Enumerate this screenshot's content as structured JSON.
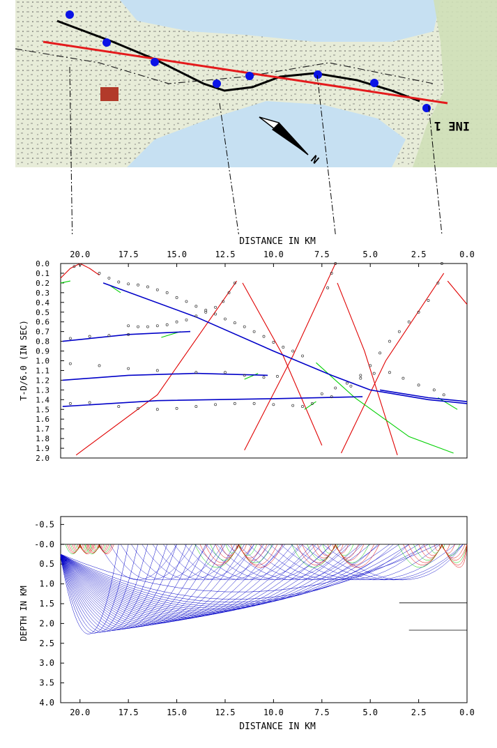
{
  "map": {
    "labels": [
      "INE 1",
      "N"
    ],
    "profile_line_color": "#e41a1c",
    "shotpoint_color": "#0a12e6",
    "shotpoint_count": 9
  },
  "colors": {
    "red": "#e00000",
    "green": "#00d000",
    "blue": "#0000c8"
  },
  "chart_data": [
    {
      "type": "line",
      "title": "",
      "xlabel": "DISTANCE IN KM",
      "ylabel": "T-D/6.0 (IN SEC)",
      "xlim": [
        21.0,
        0.0
      ],
      "ylim": [
        2.0,
        0.0
      ],
      "x_ticks": [
        "20.0",
        "17.5",
        "15.0",
        "12.5",
        "10.0",
        "7.5",
        "5.0",
        "2.5",
        "0.0"
      ],
      "y_ticks": [
        "0.0",
        "0.1",
        "0.2",
        "0.3",
        "0.4",
        "0.5",
        "0.6",
        "0.7",
        "0.8",
        "0.9",
        "1.0",
        "1.1",
        "1.2",
        "1.3",
        "1.4",
        "1.5",
        "1.6",
        "1.7",
        "1.8",
        "1.9",
        "2.0"
      ],
      "series": [
        {
          "color": "red",
          "values": [
            [
              21.0,
              0.15
            ],
            [
              20.5,
              0.05
            ],
            [
              20.0,
              0.0
            ],
            [
              19.5,
              0.05
            ],
            [
              19.0,
              0.12
            ]
          ]
        },
        {
          "color": "red",
          "values": [
            [
              20.2,
              1.97
            ],
            [
              16.0,
              1.35
            ],
            [
              11.9,
              0.18
            ]
          ]
        },
        {
          "color": "red",
          "values": [
            [
              11.6,
              0.2
            ],
            [
              9.5,
              0.95
            ],
            [
              7.5,
              1.87
            ]
          ]
        },
        {
          "color": "red",
          "values": [
            [
              11.5,
              1.92
            ],
            [
              9.0,
              0.95
            ],
            [
              6.8,
              0.0
            ]
          ]
        },
        {
          "color": "red",
          "values": [
            [
              6.7,
              0.2
            ],
            [
              5.3,
              0.9
            ],
            [
              3.6,
              1.97
            ]
          ]
        },
        {
          "color": "red",
          "values": [
            [
              6.5,
              1.95
            ],
            [
              4.2,
              1.0
            ],
            [
              1.2,
              0.1
            ]
          ]
        },
        {
          "color": "red",
          "values": [
            [
              1.0,
              0.18
            ],
            [
              0.0,
              0.42
            ]
          ]
        },
        {
          "color": "green",
          "values": [
            [
              21.0,
              0.2
            ],
            [
              20.5,
              0.18
            ]
          ]
        },
        {
          "color": "green",
          "values": [
            [
              18.5,
              0.22
            ],
            [
              17.9,
              0.3
            ]
          ]
        },
        {
          "color": "green",
          "values": [
            [
              15.8,
              0.76
            ],
            [
              14.8,
              0.7
            ]
          ]
        },
        {
          "color": "green",
          "values": [
            [
              11.5,
              1.19
            ],
            [
              10.8,
              1.13
            ]
          ]
        },
        {
          "color": "green",
          "values": [
            [
              8.4,
              1.5
            ],
            [
              7.8,
              1.42
            ]
          ]
        },
        {
          "color": "green",
          "values": [
            [
              7.8,
              1.02
            ],
            [
              5.8,
              1.38
            ],
            [
              3.0,
              1.78
            ],
            [
              0.7,
              1.95
            ]
          ]
        },
        {
          "color": "green",
          "values": [
            [
              1.5,
              1.38
            ],
            [
              0.5,
              1.5
            ]
          ]
        },
        {
          "color": "blue",
          "values": [
            [
              18.8,
              0.2
            ],
            [
              14.0,
              0.55
            ],
            [
              10.0,
              0.9
            ],
            [
              7.0,
              1.15
            ],
            [
              5.0,
              1.3
            ],
            [
              2.0,
              1.4
            ],
            [
              0.0,
              1.44
            ]
          ]
        },
        {
          "color": "blue",
          "values": [
            [
              20.9,
              0.8
            ],
            [
              17.5,
              0.73
            ],
            [
              14.3,
              0.7
            ]
          ]
        },
        {
          "color": "blue",
          "values": [
            [
              20.9,
              1.2
            ],
            [
              17.5,
              1.15
            ],
            [
              14.0,
              1.13
            ],
            [
              10.3,
              1.15
            ]
          ]
        },
        {
          "color": "blue",
          "values": [
            [
              20.9,
              1.47
            ],
            [
              16.0,
              1.41
            ],
            [
              10.0,
              1.39
            ],
            [
              5.4,
              1.37
            ]
          ]
        },
        {
          "color": "blue",
          "values": [
            [
              4.5,
              1.3
            ],
            [
              2.0,
              1.38
            ],
            [
              0.0,
              1.42
            ]
          ]
        }
      ],
      "observed_points": [
        [
          20.3,
          0.03
        ],
        [
          20.0,
          0.01
        ],
        [
          19.0,
          0.1
        ],
        [
          18.5,
          0.15
        ],
        [
          18.0,
          0.19
        ],
        [
          17.5,
          0.21
        ],
        [
          17.0,
          0.22
        ],
        [
          16.5,
          0.24
        ],
        [
          16.0,
          0.27
        ],
        [
          15.5,
          0.3
        ],
        [
          15.0,
          0.35
        ],
        [
          14.5,
          0.39
        ],
        [
          14.0,
          0.44
        ],
        [
          13.5,
          0.48
        ],
        [
          13.0,
          0.52
        ],
        [
          12.5,
          0.57
        ],
        [
          12.0,
          0.61
        ],
        [
          11.5,
          0.65
        ],
        [
          11.0,
          0.7
        ],
        [
          10.5,
          0.75
        ],
        [
          10.0,
          0.81
        ],
        [
          9.5,
          0.86
        ],
        [
          9.0,
          0.9
        ],
        [
          8.5,
          0.95
        ],
        [
          17.5,
          0.64
        ],
        [
          17.0,
          0.65
        ],
        [
          16.5,
          0.65
        ],
        [
          16.0,
          0.64
        ],
        [
          15.5,
          0.63
        ],
        [
          15.0,
          0.6
        ],
        [
          14.5,
          0.58
        ],
        [
          14.0,
          0.54
        ],
        [
          13.5,
          0.5
        ],
        [
          13.0,
          0.45
        ],
        [
          12.6,
          0.39
        ],
        [
          12.3,
          0.3
        ],
        [
          12.0,
          0.2
        ],
        [
          20.5,
          0.77
        ],
        [
          19.5,
          0.75
        ],
        [
          18.5,
          0.74
        ],
        [
          17.5,
          0.73
        ],
        [
          20.5,
          1.03
        ],
        [
          19.0,
          1.05
        ],
        [
          17.5,
          1.08
        ],
        [
          16.0,
          1.1
        ],
        [
          14.0,
          1.12
        ],
        [
          12.5,
          1.12
        ],
        [
          11.5,
          1.15
        ],
        [
          10.5,
          1.17
        ],
        [
          9.8,
          1.16
        ],
        [
          20.5,
          1.44
        ],
        [
          19.5,
          1.43
        ],
        [
          18.0,
          1.47
        ],
        [
          17.0,
          1.49
        ],
        [
          16.0,
          1.5
        ],
        [
          15.0,
          1.49
        ],
        [
          14.0,
          1.47
        ],
        [
          13.0,
          1.45
        ],
        [
          12.0,
          1.44
        ],
        [
          11.0,
          1.44
        ],
        [
          10.0,
          1.45
        ],
        [
          9.0,
          1.46
        ],
        [
          8.5,
          1.47
        ],
        [
          8.0,
          1.44
        ],
        [
          7.0,
          1.37
        ],
        [
          6.0,
          1.26
        ],
        [
          5.5,
          1.15
        ],
        [
          5.0,
          1.05
        ],
        [
          4.5,
          0.92
        ],
        [
          4.0,
          0.8
        ],
        [
          3.5,
          0.7
        ],
        [
          3.0,
          0.6
        ],
        [
          2.5,
          0.5
        ],
        [
          2.0,
          0.38
        ],
        [
          1.5,
          0.2
        ],
        [
          7.5,
          1.34
        ],
        [
          6.8,
          1.28
        ],
        [
          6.2,
          1.23
        ],
        [
          5.5,
          1.18
        ],
        [
          4.8,
          1.13
        ],
        [
          4.0,
          1.12
        ],
        [
          3.3,
          1.18
        ],
        [
          2.5,
          1.25
        ],
        [
          1.7,
          1.3
        ],
        [
          1.2,
          1.35
        ],
        [
          7.2,
          0.25
        ],
        [
          7.0,
          0.1
        ],
        [
          6.8,
          0.0
        ],
        [
          1.3,
          0.0
        ]
      ]
    },
    {
      "type": "line",
      "title": "",
      "xlabel": "DISTANCE IN KM",
      "ylabel": "DEPTH IN KM",
      "xlim": [
        21.0,
        0.0
      ],
      "ylim": [
        4.0,
        -0.7
      ],
      "x_ticks": [
        "20.0",
        "17.5",
        "15.0",
        "12.5",
        "10.0",
        "7.5",
        "5.0",
        "2.5",
        "0.0"
      ],
      "y_ticks": [
        "-0.5",
        "-0.0",
        "0.5",
        "1.0",
        "1.5",
        "2.0",
        "2.5",
        "3.0",
        "3.5",
        "4.0"
      ],
      "interfaces": [
        {
          "values": [
            [
              21.0,
              0.0
            ],
            [
              0.0,
              0.0
            ]
          ]
        },
        {
          "values": [
            [
              3.5,
              1.48
            ],
            [
              0.0,
              1.48
            ]
          ]
        },
        {
          "values": [
            [
              3.0,
              2.17
            ],
            [
              0.0,
              2.17
            ]
          ]
        }
      ],
      "ray_fans": [
        {
          "source_x": 20.0,
          "color": "red",
          "reach": 0.8
        },
        {
          "source_x": 19.0,
          "color": "red",
          "reach": 0.8
        },
        {
          "source_x": 11.8,
          "color": "red",
          "reach": 2.4
        },
        {
          "source_x": 6.8,
          "color": "red",
          "reach": 2.4
        },
        {
          "source_x": 1.3,
          "color": "red",
          "reach": 2.4
        }
      ]
    }
  ]
}
